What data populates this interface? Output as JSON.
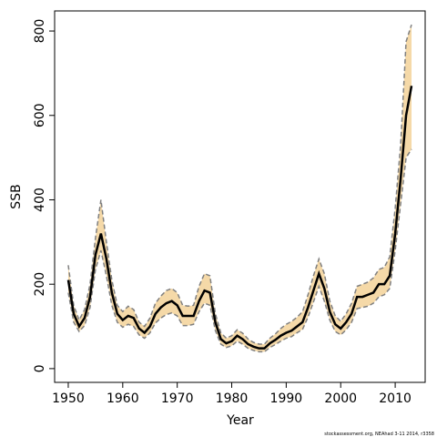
{
  "chart_data": {
    "type": "line",
    "xlabel": "Year",
    "ylabel": "SSB",
    "footnote": "stockassessment.org, NEAhad 3-11 2014, r3358",
    "x": [
      1950,
      1951,
      1952,
      1953,
      1954,
      1955,
      1956,
      1957,
      1958,
      1959,
      1960,
      1961,
      1962,
      1963,
      1964,
      1965,
      1966,
      1967,
      1968,
      1969,
      1970,
      1971,
      1972,
      1973,
      1974,
      1975,
      1976,
      1977,
      1978,
      1979,
      1980,
      1981,
      1982,
      1983,
      1984,
      1985,
      1986,
      1987,
      1988,
      1989,
      1990,
      1991,
      1992,
      1993,
      1994,
      1995,
      1996,
      1997,
      1998,
      1999,
      2000,
      2001,
      2002,
      2003,
      2004,
      2005,
      2006,
      2007,
      2008,
      2009,
      2010,
      2011,
      2012,
      2013
    ],
    "values": [
      210,
      130,
      100,
      120,
      170,
      270,
      320,
      260,
      180,
      130,
      115,
      125,
      120,
      95,
      85,
      100,
      130,
      145,
      155,
      160,
      150,
      125,
      125,
      125,
      160,
      185,
      180,
      110,
      70,
      60,
      65,
      78,
      70,
      58,
      52,
      48,
      48,
      60,
      68,
      78,
      85,
      90,
      100,
      110,
      145,
      185,
      225,
      190,
      135,
      105,
      95,
      110,
      130,
      170,
      170,
      175,
      180,
      200,
      200,
      220,
      320,
      450,
      600,
      670
    ],
    "lower": [
      180,
      110,
      88,
      102,
      145,
      235,
      280,
      220,
      150,
      110,
      98,
      105,
      100,
      80,
      72,
      85,
      108,
      120,
      128,
      132,
      125,
      102,
      102,
      105,
      135,
      155,
      150,
      90,
      58,
      50,
      54,
      65,
      58,
      48,
      43,
      40,
      40,
      50,
      57,
      65,
      72,
      76,
      85,
      93,
      122,
      158,
      195,
      160,
      115,
      88,
      80,
      92,
      110,
      142,
      145,
      148,
      155,
      170,
      175,
      190,
      280,
      390,
      500,
      520
    ],
    "upper": [
      245,
      150,
      115,
      140,
      200,
      310,
      400,
      300,
      210,
      150,
      135,
      148,
      140,
      110,
      100,
      120,
      155,
      172,
      185,
      190,
      180,
      150,
      148,
      150,
      195,
      225,
      220,
      130,
      85,
      72,
      78,
      92,
      84,
      70,
      62,
      58,
      58,
      72,
      82,
      95,
      105,
      112,
      122,
      135,
      175,
      220,
      260,
      225,
      160,
      125,
      112,
      130,
      155,
      195,
      200,
      205,
      215,
      235,
      240,
      265,
      380,
      530,
      775,
      815
    ],
    "color": "#000000",
    "band_color": "#f5d9a8",
    "bound_color": "#808080",
    "xlim": [
      1947.5,
      2015.5
    ],
    "ylim": [
      -32.6,
      847.6
    ],
    "xticks": [
      1950,
      1960,
      1970,
      1980,
      1990,
      2000,
      2010
    ],
    "yticks": [
      0,
      200,
      400,
      600,
      800
    ]
  }
}
